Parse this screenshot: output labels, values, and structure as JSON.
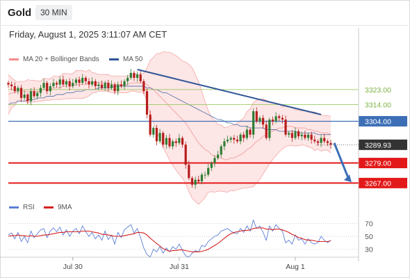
{
  "header": {
    "symbol": "Gold",
    "timeframe": "30 MIN",
    "datetime": "Friday, August 1, 2025 3:11:07 AM CET"
  },
  "colors": {
    "up": "#2e7d32",
    "down": "#b71c1c",
    "bollinger": "#f4a6a6",
    "bollinger_fill": "#fde3e3",
    "ma50": "#2f5597",
    "resistance_green": "#8bc34a",
    "blue_level": "#3c6fb6",
    "red_level": "#e31919",
    "rsi": "#5b7fd6",
    "rsi_ma": "#d62020"
  },
  "chart_data": [
    {
      "type": "candlestick",
      "legend": [
        {
          "label": "MA 20 + Bollinger Bands",
          "color": "#f28b8b"
        },
        {
          "label": "MA 50",
          "color": "#2f5597"
        }
      ],
      "x_ticks": [
        "Jul 30",
        "Jul 31",
        "Aug 1"
      ],
      "ylim": [
        3258,
        3340
      ],
      "levels": [
        {
          "value": 3323.0,
          "label": "3323.00",
          "style": "green"
        },
        {
          "value": 3314.0,
          "label": "3314.00",
          "style": "green"
        },
        {
          "value": 3304.0,
          "label": "3304.00",
          "style": "blue"
        },
        {
          "value": 3289.93,
          "label": "3289.93",
          "style": "current"
        },
        {
          "value": 3279.0,
          "label": "3279.00",
          "style": "red"
        },
        {
          "value": 3267.0,
          "label": "3267.00",
          "style": "red"
        }
      ],
      "close": [
        3326,
        3325,
        3322,
        3324,
        3318,
        3320,
        3316,
        3322,
        3319,
        3321,
        3324,
        3327,
        3322,
        3325,
        3327,
        3326,
        3329,
        3326,
        3328,
        3325,
        3327,
        3329,
        3327,
        3330,
        3328,
        3326,
        3328,
        3325,
        3326,
        3324,
        3327,
        3324,
        3326,
        3322,
        3326,
        3325,
        3328,
        3330,
        3333,
        3330,
        3332,
        3328,
        3322,
        3308,
        3296,
        3300,
        3292,
        3297,
        3290,
        3294,
        3289,
        3292,
        3291,
        3294,
        3290,
        3278,
        3270,
        3266,
        3269,
        3268,
        3272,
        3272,
        3276,
        3279,
        3282,
        3284,
        3289,
        3292,
        3293,
        3294,
        3293,
        3292,
        3296,
        3294,
        3299,
        3296,
        3310,
        3304,
        3306,
        3302,
        3294,
        3305,
        3304,
        3307,
        3306,
        3305,
        3296,
        3297,
        3294,
        3298,
        3295,
        3296,
        3294,
        3296,
        3293,
        3292,
        3291,
        3294,
        3292,
        3291,
        3289.93
      ],
      "ma20": [
        3320,
        3321,
        3321,
        3322,
        3322,
        3322,
        3322,
        3322,
        3322,
        3322,
        3322,
        3323,
        3323,
        3323,
        3324,
        3324,
        3324,
        3325,
        3325,
        3325,
        3325,
        3326,
        3326,
        3326,
        3326,
        3327,
        3327,
        3327,
        3327,
        3327,
        3327,
        3327,
        3326,
        3326,
        3326,
        3326,
        3326,
        3326,
        3327,
        3327,
        3327,
        3327,
        3327,
        3326,
        3324,
        3323,
        3321,
        3319,
        3317,
        3315,
        3313,
        3311,
        3309,
        3307,
        3305,
        3303,
        3300,
        3297,
        3294,
        3291,
        3289,
        3287,
        3286,
        3284,
        3283,
        3282,
        3282,
        3281,
        3281,
        3282,
        3282,
        3283,
        3284,
        3285,
        3287,
        3288,
        3290,
        3292,
        3293,
        3295,
        3296,
        3297,
        3298,
        3299,
        3300,
        3300,
        3301,
        3301,
        3301,
        3300,
        3300,
        3300,
        3300,
        3299,
        3299,
        3298,
        3298,
        3297,
        3297,
        3297,
        3296
      ],
      "ma50": [
        3314,
        3315,
        3315,
        3316,
        3316,
        3316,
        3317,
        3317,
        3317,
        3318,
        3318,
        3318,
        3319,
        3319,
        3319,
        3320,
        3320,
        3320,
        3321,
        3321,
        3321,
        3322,
        3322,
        3322,
        3323,
        3323,
        3323,
        3323,
        3324,
        3324,
        3324,
        3324,
        3324,
        3325,
        3325,
        3325,
        3325,
        3325,
        3325,
        3325,
        3325,
        3325,
        3325,
        3324,
        3324,
        3323,
        3323,
        3322,
        3321,
        3321,
        3320,
        3319,
        3318,
        3317,
        3316,
        3315,
        3314,
        3313,
        3312,
        3311,
        3310,
        3309,
        3308,
        3307,
        3306,
        3305,
        3305,
        3304,
        3303,
        3303,
        3302,
        3302,
        3301,
        3301,
        3301,
        3300,
        3300,
        3300,
        3300,
        3300,
        3299,
        3299,
        3299,
        3299,
        3298,
        3298,
        3298,
        3298,
        3298,
        3298,
        3297,
        3297,
        3297,
        3297,
        3297,
        3297,
        3296,
        3296,
        3296,
        3296,
        3296
      ]
    },
    {
      "type": "line",
      "legend": [
        {
          "label": "RSI",
          "color": "#5b7fd6"
        },
        {
          "label": "9MA",
          "color": "#d62020"
        }
      ],
      "y_ticks": [
        70,
        50,
        30
      ],
      "ylim": [
        20,
        80
      ],
      "series": [
        {
          "name": "RSI",
          "values": [
            52,
            55,
            46,
            56,
            42,
            50,
            40,
            58,
            48,
            54,
            60,
            62,
            48,
            58,
            63,
            57,
            64,
            52,
            60,
            50,
            58,
            62,
            54,
            66,
            57,
            50,
            56,
            46,
            52,
            44,
            58,
            45,
            52,
            38,
            56,
            48,
            60,
            64,
            68,
            55,
            62,
            48,
            32,
            22,
            18,
            30,
            26,
            34,
            24,
            32,
            26,
            34,
            30,
            38,
            28,
            20,
            18,
            24,
            28,
            26,
            36,
            34,
            42,
            46,
            50,
            52,
            58,
            60,
            62,
            58,
            55,
            54,
            62,
            56,
            66,
            58,
            75,
            62,
            66,
            56,
            44,
            66,
            58,
            68,
            62,
            58,
            40,
            44,
            38,
            52,
            44,
            46,
            38,
            46,
            40,
            38,
            40,
            50,
            44,
            40,
            44
          ]
        },
        {
          "name": "9MA",
          "values": [
            50,
            51,
            51,
            52,
            51,
            51,
            50,
            51,
            50,
            50,
            51,
            52,
            52,
            53,
            54,
            55,
            56,
            56,
            57,
            57,
            57,
            57,
            57,
            58,
            58,
            58,
            57,
            56,
            55,
            53,
            53,
            52,
            51,
            50,
            50,
            50,
            51,
            52,
            53,
            54,
            56,
            56,
            55,
            52,
            47,
            43,
            39,
            35,
            31,
            29,
            27,
            28,
            28,
            29,
            29,
            28,
            27,
            26,
            26,
            26,
            27,
            28,
            30,
            33,
            36,
            39,
            43,
            47,
            51,
            54,
            56,
            57,
            58,
            59,
            59,
            60,
            62,
            63,
            63,
            63,
            61,
            61,
            60,
            61,
            61,
            60,
            58,
            56,
            53,
            51,
            48,
            47,
            45,
            44,
            44,
            43,
            42,
            42,
            42,
            42,
            43
          ]
        }
      ]
    }
  ]
}
